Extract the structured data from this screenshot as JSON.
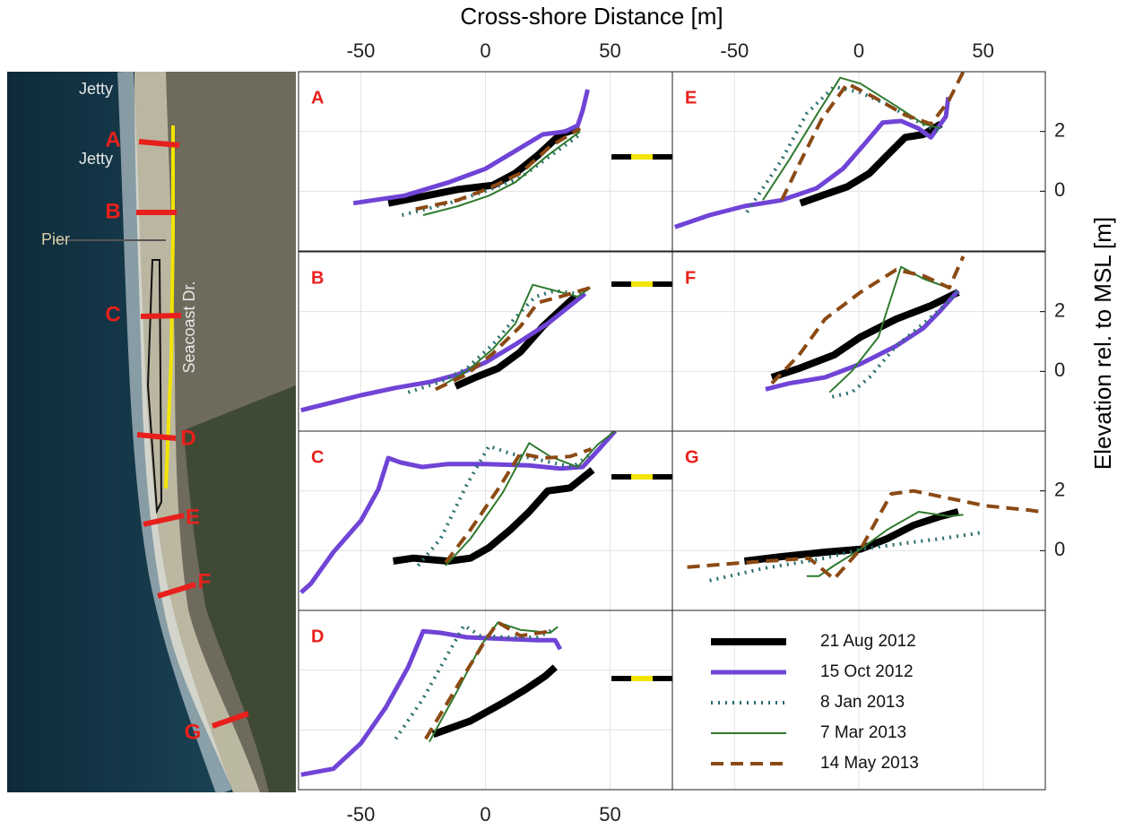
{
  "chart_data": {
    "type": "line",
    "title": "Cross-shore Distance [m]",
    "y_label": "Elevation rel. to MSL [m]",
    "xlim": [
      -75,
      75
    ],
    "xticks": [
      -50,
      0,
      50
    ],
    "ylim": [
      -2,
      4
    ],
    "yticks": [
      0,
      2
    ],
    "grid": true,
    "series": [
      {
        "name": "21 Aug 2012",
        "color": "#000000",
        "style": "solid",
        "width": 8
      },
      {
        "name": "15 Oct 2012",
        "color": "#6f44d6",
        "style": "solid",
        "width": 5
      },
      {
        "name": "8 Jan 2013",
        "color": "#2a6e6e",
        "style": "dotted",
        "width": 4
      },
      {
        "name": "7 Mar 2013",
        "color": "#2f7a2f",
        "style": "solid",
        "width": 2
      },
      {
        "name": "14 May 2013",
        "color": "#8b4a14",
        "style": "dashed",
        "width": 4
      }
    ],
    "panels": [
      {
        "label": "A",
        "lines": [
          {
            "x": [
              -39,
              -25.4,
              -11,
              3,
              12,
              21,
              30,
              37
            ],
            "values": [
              -0.4,
              -0.18,
              0.06,
              0.2,
              0.6,
              1.2,
              1.9,
              2.1
            ]
          },
          {
            "x": [
              -53,
              -32.5,
              -14.6,
              0,
              12,
              23,
              32,
              37,
              39,
              41
            ],
            "values": [
              -0.4,
              -0.15,
              0.3,
              0.75,
              1.35,
              1.9,
              2.0,
              2.2,
              2.7,
              3.4
            ]
          },
          {
            "x": [
              -33.5,
              -14.6,
              0,
              14,
              28,
              38
            ],
            "values": [
              -0.8,
              -0.4,
              0,
              0.45,
              1.3,
              1.9
            ]
          },
          {
            "x": [
              -25,
              -11,
              1.4,
              12,
              25,
              38
            ],
            "values": [
              -0.8,
              -0.5,
              -0.15,
              0.3,
              1.2,
              2.0
            ]
          },
          {
            "x": [
              -28,
              -11,
              1.4,
              14,
              26,
              38
            ],
            "values": [
              -0.6,
              -0.3,
              0.1,
              0.6,
              1.5,
              2.1
            ]
          }
        ]
      },
      {
        "label": "B",
        "lines": [
          {
            "x": [
              -12,
              -4,
              5,
              14,
              23,
              32,
              36
            ],
            "values": [
              -0.5,
              -0.2,
              0.1,
              0.65,
              1.5,
              2.2,
              2.5
            ]
          },
          {
            "x": [
              -74,
              -50,
              -36,
              -22,
              -11,
              0,
              12,
              25,
              34,
              40
            ],
            "values": [
              -1.3,
              -0.8,
              -0.55,
              -0.35,
              -0.1,
              0.3,
              0.9,
              1.6,
              2.2,
              2.6
            ]
          },
          {
            "x": [
              -31,
              -18,
              -7.5,
              3,
              12,
              20,
              28,
              37,
              42
            ],
            "values": [
              -0.7,
              -0.35,
              0.1,
              0.9,
              1.8,
              2.5,
              2.7,
              2.6,
              2.8
            ]
          },
          {
            "x": [
              -20,
              -7.5,
              3,
              12,
              19,
              28,
              37,
              42
            ],
            "values": [
              -0.6,
              0,
              0.75,
              1.6,
              2.9,
              2.7,
              2.5,
              2.8
            ]
          },
          {
            "x": [
              -20,
              -7.5,
              3,
              14,
              21,
              30,
              42
            ],
            "values": [
              -0.6,
              -0.1,
              0.6,
              1.5,
              2.3,
              2.5,
              2.8
            ]
          }
        ]
      },
      {
        "label": "C",
        "lines": [
          {
            "x": [
              -37,
              -29,
              -15,
              -6,
              1.4,
              10,
              17.5,
              25,
              34,
              43
            ],
            "values": [
              -0.35,
              -0.25,
              -0.35,
              -0.25,
              0.1,
              0.7,
              1.3,
              2.0,
              2.1,
              2.7
            ]
          },
          {
            "x": [
              -74,
              -70,
              -61,
              -50,
              -43,
              -39,
              -34,
              -25.4,
              -15,
              0,
              17.5,
              30,
              39,
              44,
              52
            ],
            "values": [
              -1.4,
              -1.1,
              -0.05,
              1.0,
              2.05,
              3.1,
              2.95,
              2.8,
              2.9,
              2.9,
              2.85,
              2.75,
              2.8,
              3.25,
              4
            ]
          },
          {
            "x": [
              -27,
              -18,
              -7.5,
              1.4,
              10,
              21,
              35,
              42.5
            ],
            "values": [
              -0.5,
              0.4,
              2.2,
              3.5,
              3.25,
              3.05,
              2.8,
              3.25
            ]
          },
          {
            "x": [
              -16,
              -6,
              7,
              17.5,
              26,
              37,
              45,
              52
            ],
            "values": [
              -0.5,
              0.4,
              1.95,
              3.6,
              3.15,
              2.8,
              3.55,
              4
            ]
          },
          {
            "x": [
              -16,
              -6,
              5,
              14,
              23,
              34,
              42.5
            ],
            "values": [
              -0.4,
              0.7,
              2.05,
              3.25,
              3.1,
              3.15,
              3.4
            ]
          }
        ]
      },
      {
        "label": "D",
        "lines": [
          {
            "x": [
              -21,
              -6,
              7,
              16,
              24,
              28
            ],
            "values": [
              -0.15,
              0.3,
              0.9,
              1.35,
              1.8,
              2.1
            ]
          },
          {
            "x": [
              -74,
              -61,
              -50,
              -40,
              -31,
              -25,
              -18,
              -7.5,
              7,
              21,
              28,
              30
            ],
            "values": [
              -1.5,
              -1.3,
              -0.45,
              0.75,
              2.1,
              3.3,
              3.25,
              3.1,
              3.05,
              3.0,
              3.0,
              2.7
            ]
          },
          {
            "x": [
              -36,
              -25,
              -15,
              -8.6,
              -2,
              10,
              21,
              28
            ],
            "values": [
              -0.3,
              1.05,
              2.55,
              3.5,
              3.15,
              3.1,
              3.1,
              3.4
            ]
          },
          {
            "x": [
              -22.5,
              -11,
              -2,
              5,
              14,
              26,
              29
            ],
            "values": [
              -0.4,
              1.35,
              2.8,
              3.6,
              3.35,
              3.25,
              3.45
            ]
          },
          {
            "x": [
              -24,
              -11,
              0,
              5,
              14,
              26
            ],
            "values": [
              -0.3,
              1.5,
              3.0,
              3.6,
              3.15,
              3.3
            ]
          }
        ]
      },
      {
        "label": "E",
        "lines": [
          {
            "x": [
              -23.5,
              -15,
              -4.6,
              4.3,
              11.4,
              18.6,
              26,
              33
            ],
            "values": [
              -0.4,
              -0.15,
              0.15,
              0.6,
              1.2,
              1.8,
              1.9,
              2.25
            ]
          },
          {
            "x": [
              -74,
              -60,
              -46,
              -31,
              -17,
              -6.4,
              2.5,
              9.6,
              17,
              24,
              29,
              35,
              36
            ],
            "values": [
              -1.2,
              -0.8,
              -0.5,
              -0.3,
              0.1,
              0.75,
              1.6,
              2.3,
              2.35,
              2.1,
              1.8,
              2.5,
              3.15
            ]
          },
          {
            "x": [
              -45,
              -31,
              -21,
              -10,
              0.7,
              11.4,
              22,
              33
            ],
            "values": [
              -0.7,
              1.05,
              2.6,
              3.5,
              3.3,
              2.9,
              2.4,
              1.95
            ]
          },
          {
            "x": [
              -38.6,
              -28,
              -17,
              -7.5,
              0.7,
              15,
              26,
              33
            ],
            "values": [
              -0.3,
              1.05,
              2.55,
              3.8,
              3.6,
              2.85,
              2.25,
              2.1
            ]
          },
          {
            "x": [
              -31,
              -24,
              -15,
              -4.6,
              6,
              18.6,
              29,
              36,
              42
            ],
            "values": [
              -0.3,
              0.9,
              2.4,
              3.6,
              3.15,
              2.55,
              2.25,
              3.0,
              4
            ]
          }
        ]
      },
      {
        "label": "F",
        "lines": [
          {
            "x": [
              -35,
              -24,
              -10,
              0.7,
              15,
              29,
              40
            ],
            "values": [
              -0.2,
              0.1,
              0.55,
              1.15,
              1.75,
              2.2,
              2.65
            ]
          },
          {
            "x": [
              -37.5,
              -28,
              -13.6,
              0.7,
              15,
              26,
              33,
              40
            ],
            "values": [
              -0.6,
              -0.4,
              -0.2,
              0.25,
              0.85,
              1.45,
              2.05,
              2.7
            ]
          },
          {
            "x": [
              -10.7,
              -2.9,
              4.3,
              15,
              26,
              36.4,
              40
            ],
            "values": [
              -0.85,
              -0.7,
              -0.2,
              0.85,
              1.6,
              2.35,
              2.75
            ]
          },
          {
            "x": [
              -11.8,
              -2.9,
              7.9,
              17,
              26,
              36
            ],
            "values": [
              -0.7,
              0,
              1.15,
              3.5,
              3.1,
              2.8
            ]
          },
          {
            "x": [
              -35,
              -24,
              -13.6,
              0.7,
              15,
              26,
              36.4,
              42
            ],
            "values": [
              -0.4,
              0.55,
              1.75,
              2.65,
              3.4,
              3.2,
              2.8,
              3.85
            ]
          }
        ]
      },
      {
        "label": "G",
        "lines": [
          {
            "x": [
              -46,
              -31,
              -13.6,
              0.7,
              11.4,
              22,
              33,
              40
            ],
            "values": [
              -0.35,
              -0.2,
              -0.05,
              0.05,
              0.4,
              0.85,
              1.15,
              1.3
            ]
          },
          {
            "x": [],
            "values": []
          },
          {
            "x": [
              -60,
              -38.6,
              -13.6,
              0.7,
              18.6,
              33,
              49
            ],
            "values": [
              -1.0,
              -0.6,
              -0.25,
              0.05,
              0.25,
              0.4,
              0.6
            ]
          },
          {
            "x": [
              -21,
              -16,
              -10,
              0.7,
              11.4,
              24,
              36.4,
              42
            ],
            "values": [
              -0.85,
              -0.85,
              -0.5,
              0.05,
              0.7,
              1.3,
              1.15,
              1.2
            ]
          },
          {
            "x": [
              -69,
              -46,
              -20,
              -10,
              0.7,
              13,
              22,
              36.4,
              51,
              69,
              73
            ],
            "values": [
              -0.55,
              -0.4,
              -0.25,
              -0.95,
              0.05,
              1.9,
              2.0,
              1.75,
              1.5,
              1.35,
              1.3
            ]
          }
        ]
      }
    ]
  },
  "map": {
    "labels": [
      "Jetty",
      "Jetty",
      "Pier",
      "Seacoast Dr."
    ],
    "transects": [
      "A",
      "B",
      "C",
      "D",
      "E",
      "F",
      "G"
    ]
  }
}
